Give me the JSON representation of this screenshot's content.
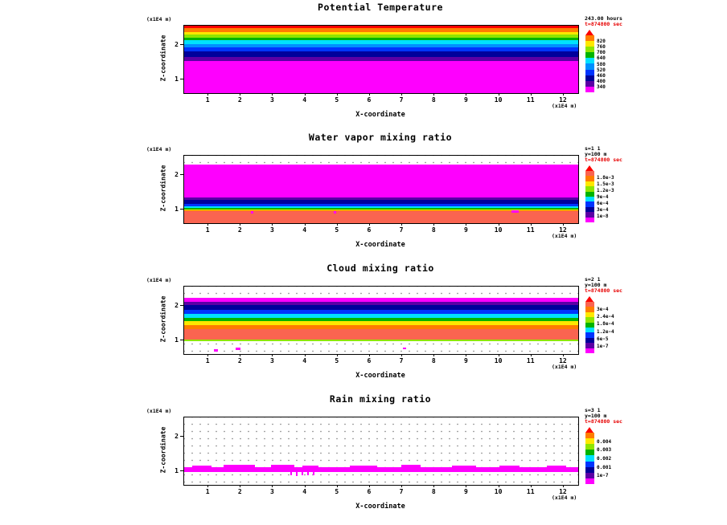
{
  "page": {
    "background": "#ffffff"
  },
  "chart_data": [
    {
      "type": "heatmap",
      "title": "Potential Temperature",
      "xlabel": "X-coordinate",
      "ylabel": "Z-coordinate",
      "x_unit": "(x1E4 m)",
      "y_unit": "(x1E4 m)",
      "xlim": [
        0,
        12.4
      ],
      "zlim": [
        0,
        2.6
      ],
      "x_ticks": [
        "1",
        "2",
        "3",
        "4",
        "5",
        "6",
        "7",
        "8",
        "9",
        "10",
        "11",
        "12"
      ],
      "y_ticks": [
        "2",
        "1"
      ],
      "annotation": [
        {
          "text": "243.00 hours",
          "color": "#000000"
        },
        {
          "text": "t=874800 sec",
          "color": "#e60000"
        }
      ],
      "colorbar": {
        "arrow_color": "#fd0000",
        "colors": [
          "#ff7d00",
          "#ffe800",
          "#8fe600",
          "#00b400",
          "#00e1ff",
          "#0090ff",
          "#0034fe",
          "#00009b",
          "#5b00a5",
          "#fe00fe"
        ],
        "labels": [
          "820",
          "760",
          "700",
          "640",
          "580",
          "520",
          "460",
          "400",
          "340"
        ]
      },
      "bands": [
        {
          "color": "#fd0000",
          "from": 0.0,
          "to": 0.04
        },
        {
          "color": "#ff7d00",
          "from": 0.04,
          "to": 0.09
        },
        {
          "color": "#ffe800",
          "from": 0.09,
          "to": 0.135
        },
        {
          "color": "#8fe600",
          "from": 0.135,
          "to": 0.175
        },
        {
          "color": "#00b400",
          "from": 0.175,
          "to": 0.215
        },
        {
          "color": "#00e1ff",
          "from": 0.215,
          "to": 0.27
        },
        {
          "color": "#0090ff",
          "from": 0.27,
          "to": 0.325
        },
        {
          "color": "#0034fe",
          "from": 0.325,
          "to": 0.385
        },
        {
          "color": "#00009b",
          "from": 0.385,
          "to": 0.46
        },
        {
          "color": "#5b00a5",
          "from": 0.46,
          "to": 0.525
        },
        {
          "color": "#fe00fe",
          "from": 0.525,
          "to": 1.0
        }
      ],
      "patches": []
    },
    {
      "type": "heatmap",
      "title": "Water vapor mixing ratio",
      "xlabel": "X-coordinate",
      "ylabel": "Z-coordinate",
      "x_unit": "(x1E4 m)",
      "y_unit": "(x1E4 m)",
      "xlim": [
        0,
        12.4
      ],
      "zlim": [
        0,
        2.6
      ],
      "x_ticks": [
        "1",
        "2",
        "3",
        "4",
        "5",
        "6",
        "7",
        "8",
        "9",
        "10",
        "11",
        "12"
      ],
      "y_ticks": [
        "2",
        "1"
      ],
      "annotation": [
        {
          "text": "s=1 1",
          "color": "#000000"
        },
        {
          "text": "y=100 m",
          "color": "#000000"
        },
        {
          "text": "t=874800 sec",
          "color": "#e60000"
        }
      ],
      "colorbar": {
        "arrow_color": "#fd0000",
        "colors": [
          "#fa6450",
          "#ff7d00",
          "#ffe800",
          "#8fe600",
          "#00b400",
          "#00e1ff",
          "#0034fe",
          "#00009b",
          "#5b00a5",
          "#fe00fe"
        ],
        "labels": [
          "1.8e-3",
          "1.5e-3",
          "1.2e-3",
          "9e-4",
          "6e-4",
          "3e-4",
          "1e-8"
        ]
      },
      "bands": [
        {
          "color": "#fe00fe",
          "from": 0.13,
          "to": 0.615
        },
        {
          "color": "#5b00a5",
          "from": 0.615,
          "to": 0.655
        },
        {
          "color": "#00009b",
          "from": 0.655,
          "to": 0.715
        },
        {
          "color": "#0034fe",
          "from": 0.715,
          "to": 0.755
        },
        {
          "color": "#00e1ff",
          "from": 0.755,
          "to": 0.775
        },
        {
          "color": "#00b400",
          "from": 0.775,
          "to": 0.795
        },
        {
          "color": "#ffe800",
          "from": 0.795,
          "to": 0.81
        },
        {
          "color": "#ff7d00",
          "from": 0.81,
          "to": 0.825
        },
        {
          "color": "#fa6450",
          "from": 0.825,
          "to": 1.0
        }
      ],
      "patches": [
        {
          "color": "#fe00fe",
          "x": 0.17,
          "w": 0.006,
          "top": 0.825,
          "h": 0.03
        },
        {
          "color": "#fe00fe",
          "x": 0.38,
          "w": 0.006,
          "top": 0.825,
          "h": 0.03
        },
        {
          "color": "#fe00fe",
          "x": 0.83,
          "w": 0.02,
          "top": 0.815,
          "h": 0.035
        }
      ]
    },
    {
      "type": "heatmap",
      "title": "Cloud mixing ratio",
      "xlabel": "X-coordinate",
      "ylabel": "Z-coordinate",
      "x_unit": "(x1E4 m)",
      "y_unit": "(x1E4 m)",
      "xlim": [
        0,
        12.4
      ],
      "zlim": [
        0,
        2.6
      ],
      "x_ticks": [
        "1",
        "2",
        "3",
        "4",
        "5",
        "6",
        "7",
        "8",
        "9",
        "10",
        "11",
        "12"
      ],
      "y_ticks": [
        "2",
        "1"
      ],
      "annotation": [
        {
          "text": "s=2 1",
          "color": "#000000"
        },
        {
          "text": "y=100 m",
          "color": "#000000"
        },
        {
          "text": "t=874800 sec",
          "color": "#e60000"
        }
      ],
      "colorbar": {
        "arrow_color": "#fd0000",
        "colors": [
          "#fa6450",
          "#ff7d00",
          "#ffe800",
          "#8fe600",
          "#00b400",
          "#00e1ff",
          "#0034fe",
          "#00009b",
          "#5b00a5",
          "#fe00fe"
        ],
        "labels": [
          "3e-4",
          "2.4e-4",
          "1.8e-4",
          "1.2e-4",
          "6e-5",
          "1e-7"
        ]
      },
      "bands": [
        {
          "color": "#fe00fe",
          "from": 0.17,
          "to": 0.225
        },
        {
          "color": "#5b00a5",
          "from": 0.225,
          "to": 0.275
        },
        {
          "color": "#00009b",
          "from": 0.275,
          "to": 0.35
        },
        {
          "color": "#0034fe",
          "from": 0.35,
          "to": 0.41
        },
        {
          "color": "#00e1ff",
          "from": 0.41,
          "to": 0.46
        },
        {
          "color": "#00b400",
          "from": 0.46,
          "to": 0.515
        },
        {
          "color": "#ffe800",
          "from": 0.515,
          "to": 0.575
        },
        {
          "color": "#ff7d00",
          "from": 0.575,
          "to": 0.63
        },
        {
          "color": "#fa6450",
          "from": 0.63,
          "to": 0.79
        },
        {
          "color": "#8fe600",
          "from": 0.79,
          "to": 0.815
        }
      ],
      "patches": [
        {
          "color": "#fe00fe",
          "x": 0.075,
          "w": 0.01,
          "top": 0.93,
          "h": 0.03
        },
        {
          "color": "#fe00fe",
          "x": 0.13,
          "w": 0.012,
          "top": 0.9,
          "h": 0.035
        },
        {
          "color": "#fe00fe",
          "x": 0.555,
          "w": 0.008,
          "top": 0.91,
          "h": 0.02
        }
      ]
    },
    {
      "type": "heatmap",
      "title": "Rain mixing ratio",
      "xlabel": "X-coordinate",
      "ylabel": "Z-coordinate",
      "x_unit": "(x1E4 m)",
      "y_unit": "(x1E4 m)",
      "xlim": [
        0,
        12.4
      ],
      "zlim": [
        0,
        2.6
      ],
      "x_ticks": [
        "1",
        "2",
        "3",
        "4",
        "5",
        "6",
        "7",
        "8",
        "9",
        "10",
        "11",
        "12"
      ],
      "y_ticks": [
        "2",
        "1"
      ],
      "annotation": [
        {
          "text": "s=3 1",
          "color": "#000000"
        },
        {
          "text": "y=100 m",
          "color": "#000000"
        },
        {
          "text": "t=874800 sec",
          "color": "#e60000"
        }
      ],
      "colorbar": {
        "arrow_color": "#fd0000",
        "colors": [
          "#ff7d00",
          "#ffe800",
          "#8fe600",
          "#00b400",
          "#00e1ff",
          "#0034fe",
          "#00009b",
          "#5b00a5",
          "#fe00fe"
        ],
        "labels": [
          "0.004",
          "0.003",
          "0.002",
          "0.001",
          "1e-7"
        ]
      },
      "bands": [],
      "patches": [
        {
          "color": "#fe00fe",
          "x": 0.0,
          "w": 1.0,
          "top": 0.735,
          "h": 0.075
        },
        {
          "color": "#fe00fe",
          "x": 0.02,
          "w": 0.05,
          "top": 0.71,
          "h": 0.05
        },
        {
          "color": "#fe00fe",
          "x": 0.1,
          "w": 0.08,
          "top": 0.705,
          "h": 0.06
        },
        {
          "color": "#fe00fe",
          "x": 0.22,
          "w": 0.06,
          "top": 0.7,
          "h": 0.07
        },
        {
          "color": "#fe00fe",
          "x": 0.3,
          "w": 0.04,
          "top": 0.71,
          "h": 0.06
        },
        {
          "color": "#fe00fe",
          "x": 0.42,
          "w": 0.07,
          "top": 0.715,
          "h": 0.05
        },
        {
          "color": "#fe00fe",
          "x": 0.55,
          "w": 0.05,
          "top": 0.705,
          "h": 0.06
        },
        {
          "color": "#fe00fe",
          "x": 0.68,
          "w": 0.06,
          "top": 0.715,
          "h": 0.05
        },
        {
          "color": "#fe00fe",
          "x": 0.8,
          "w": 0.05,
          "top": 0.71,
          "h": 0.05
        },
        {
          "color": "#fe00fe",
          "x": 0.92,
          "w": 0.05,
          "top": 0.715,
          "h": 0.05
        },
        {
          "color": "#fe00fe",
          "x": 0.27,
          "w": 0.004,
          "top": 0.815,
          "h": 0.04
        },
        {
          "color": "#fe00fe",
          "x": 0.283,
          "w": 0.004,
          "top": 0.815,
          "h": 0.05
        },
        {
          "color": "#fe00fe",
          "x": 0.298,
          "w": 0.004,
          "top": 0.815,
          "h": 0.04
        },
        {
          "color": "#fe00fe",
          "x": 0.312,
          "w": 0.004,
          "top": 0.815,
          "h": 0.045
        },
        {
          "color": "#fe00fe",
          "x": 0.327,
          "w": 0.004,
          "top": 0.815,
          "h": 0.04
        }
      ]
    }
  ]
}
